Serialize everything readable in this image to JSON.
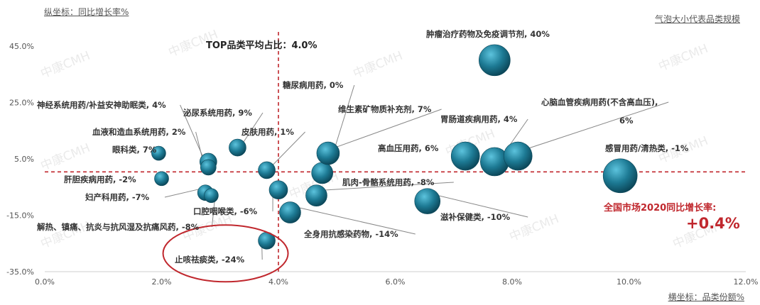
{
  "chart_data": {
    "type": "scatter",
    "bubble": true,
    "title": "",
    "ylabel_note": "纵坐标：同比增长率%",
    "xlabel_note": "横坐标：品类份额%",
    "size_note": "气泡大小代表品类规模",
    "watermark": "中康CMH",
    "average_label": "TOP品类平均占比：4.0%",
    "average_x": 4.0,
    "market_growth_label": "全国市场2020同比增长率:",
    "market_growth_value": "+0.4%",
    "market_growth_y": 0.4,
    "xlim": [
      0,
      12
    ],
    "ylim": [
      -35,
      50
    ],
    "x_ticks": [
      "0.0%",
      "2.0%",
      "4.0%",
      "6.0%",
      "8.0%",
      "10.0%",
      "12.0%"
    ],
    "x_tick_values": [
      0,
      2,
      4,
      6,
      8,
      10,
      12
    ],
    "y_ticks": [
      "45.0%",
      "25.0%",
      "5.0%",
      "-15.0%",
      "-35.0%"
    ],
    "y_tick_values": [
      45,
      25,
      5,
      -15,
      -35
    ],
    "colors": {
      "bubble": "#1d7a94",
      "bubble_light": "#5cc3dd",
      "bubble_dark": "#0b4658",
      "ref_line": "#c0272d",
      "highlight": "#c0272d"
    },
    "points": [
      {
        "label": "肿瘤治疗药物及免疫调节剂, 40%",
        "x": 7.7,
        "y": 40,
        "size": 22
      },
      {
        "label": "神经系统用药/补益安神助眠类, 4%",
        "x": 2.8,
        "y": 4,
        "size": 12
      },
      {
        "label": "泌尿系统用药, 9%",
        "x": 3.3,
        "y": 9,
        "size": 12
      },
      {
        "label": "血液和造血系统用药, 2%",
        "x": 2.8,
        "y": 2,
        "size": 11
      },
      {
        "label": "皮肤用药, 1%",
        "x": 3.8,
        "y": 1,
        "size": 12
      },
      {
        "label": "眼科类, 7%",
        "x": 1.95,
        "y": 7,
        "size": 10
      },
      {
        "label": "糖尿病用药, 0%",
        "x": 4.75,
        "y": 0,
        "size": 15
      },
      {
        "label": "维生素矿物质补充剂, 7%",
        "x": 4.85,
        "y": 7,
        "size": 16
      },
      {
        "label": "胃肠道疾病用药, 4%",
        "x": 7.7,
        "y": 4,
        "size": 20
      },
      {
        "label": "心脑血管疾病用药(不含高血压), 6%",
        "x": 8.1,
        "y": 6,
        "size": 20
      },
      {
        "label": "高血压用药, 6%",
        "x": 7.2,
        "y": 6,
        "size": 20
      },
      {
        "label": "感冒用药/清热类, -1%",
        "x": 9.85,
        "y": -1,
        "size": 24
      },
      {
        "label": "肝胆疾病用药, -2%",
        "x": 2.0,
        "y": -2,
        "size": 10
      },
      {
        "label": "妇产科用药, -7%",
        "x": 2.75,
        "y": -7,
        "size": 11
      },
      {
        "label": "肌肉-骨骼系统用药, -8%",
        "x": 4.65,
        "y": -8,
        "size": 15
      },
      {
        "label": "口腔咽喉类, -6%",
        "x": 4.0,
        "y": -6,
        "size": 13
      },
      {
        "label": "解热、镇痛、抗炎与抗风湿及抗痛风药, -8%",
        "x": 2.85,
        "y": -8,
        "size": 10
      },
      {
        "label": "滋补保健类, -10%",
        "x": 6.55,
        "y": -10,
        "size": 18
      },
      {
        "label": "全身用抗感染药物, -14%",
        "x": 4.2,
        "y": -14,
        "size": 15
      },
      {
        "label": "止咳祛痰类, -24%",
        "x": 3.8,
        "y": -24,
        "size": 12,
        "highlight": true
      }
    ]
  }
}
